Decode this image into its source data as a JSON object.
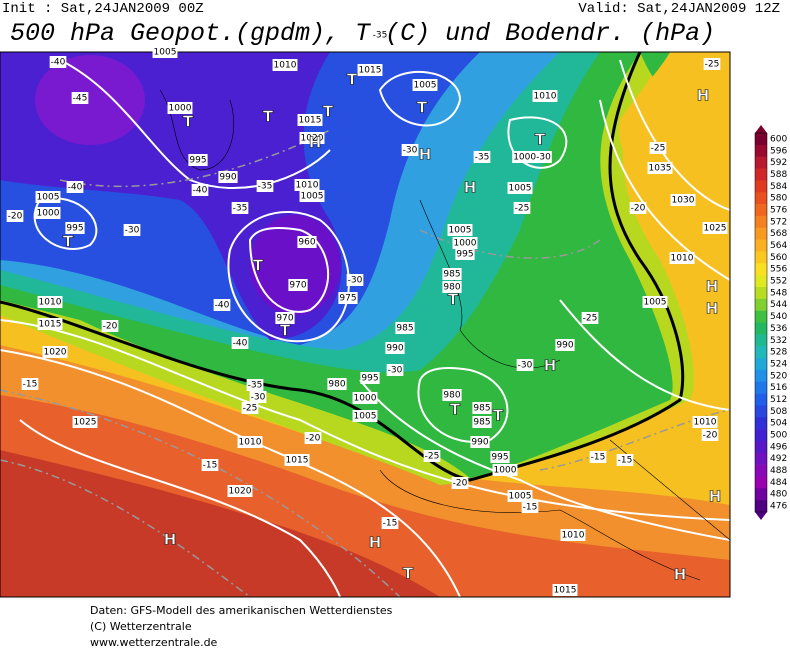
{
  "header": {
    "init": "Init : Sat,24JAN2009 00Z",
    "valid": "Valid: Sat,24JAN2009 12Z",
    "title": "500 hPa Geopot.(gpdm), T (C) und Bodendr. (hPa)"
  },
  "colorbar": {
    "labels": [
      600,
      596,
      592,
      588,
      584,
      580,
      576,
      572,
      568,
      564,
      560,
      556,
      552,
      548,
      544,
      540,
      536,
      532,
      528,
      524,
      520,
      516,
      512,
      508,
      504,
      500,
      496,
      492,
      488,
      484,
      480,
      476
    ]
  },
  "map": {
    "labels": [
      "-40",
      "-45",
      "1005",
      "1000",
      "T",
      "T",
      "-35",
      "1010",
      "1015",
      "T",
      "1005",
      "T",
      "1010",
      "T",
      "1000-30",
      "-30",
      "H",
      "-35",
      "1005",
      "H",
      "-25",
      "1015",
      "T",
      "1020",
      "H",
      "995",
      "-40",
      "990",
      "-35",
      "1010",
      "-35",
      "1005",
      "-30",
      "1005",
      "1000",
      "-40",
      "995",
      "T",
      "-20",
      "T",
      "960",
      "970",
      "975",
      "-30",
      "T",
      "970",
      "-40",
      "-40",
      "1010",
      "1015",
      "-20",
      "1020",
      "-15",
      "985",
      "980",
      "T",
      "1000",
      "995",
      "1005",
      "985",
      "990",
      "995",
      "-30",
      "980",
      "1000",
      "1005",
      "-35",
      "-30",
      "-25",
      "T",
      "980",
      "985",
      "985",
      "990",
      "T",
      "995",
      "1000",
      "1005",
      "-25",
      "-20",
      "-15",
      "990",
      "-30",
      "H",
      "-25",
      "1005",
      "1010",
      "H",
      "H",
      "1025",
      "1030",
      "1035",
      "-25",
      "-20",
      "-25",
      "H",
      "1010",
      "-20",
      "-15",
      "-15",
      "1010",
      "1015",
      "H",
      "H",
      "T",
      "H",
      "-15",
      "1020",
      "1015",
      "1010",
      "-20",
      "-15",
      "1025",
      "H"
    ]
  },
  "footer": {
    "lines": [
      "Daten: GFS-Modell des amerikanischen Wetterdienstes",
      "(C) Wetterzentrale",
      "www.wetterzentrale.de"
    ]
  }
}
